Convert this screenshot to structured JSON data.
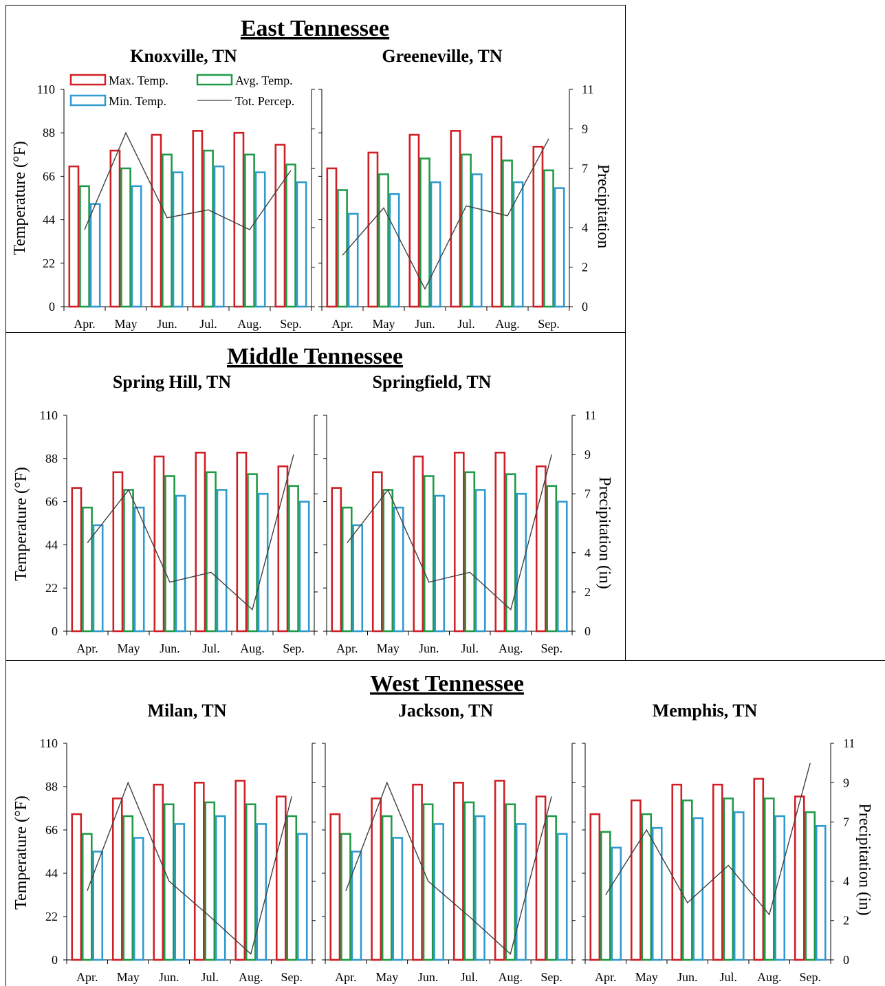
{
  "regions": [
    {
      "title": "East Tennessee"
    },
    {
      "title": "Middle Tennessee"
    },
    {
      "title": "West Tennessee"
    }
  ],
  "legend": {
    "max": "Max. Temp.",
    "avg": "Avg. Temp.",
    "min": "Min. Temp.",
    "precip": "Tot. Percep."
  },
  "axes": {
    "temp_label": "Temperature (°F)",
    "precip_label_short": "Precipitation",
    "precip_label": "Precipitation (in)",
    "temp_ticks": [
      0,
      22,
      44,
      66,
      88,
      110
    ],
    "precip_ticks": [
      0,
      2,
      4,
      7,
      9,
      11
    ]
  },
  "colors": {
    "max": "#d11f26",
    "avg": "#1f9b47",
    "min": "#2f9ad0",
    "precip": "#404040"
  },
  "chart_data": [
    {
      "type": "bar",
      "region": 0,
      "title": "Knoxville, TN",
      "categories": [
        "Apr.",
        "May",
        "Jun.",
        "Jul.",
        "Aug.",
        "Sep."
      ],
      "series": [
        {
          "name": "Max. Temp.",
          "values": [
            71,
            79,
            87,
            89,
            88,
            82
          ]
        },
        {
          "name": "Avg. Temp.",
          "values": [
            61,
            70,
            77,
            79,
            77,
            72
          ]
        },
        {
          "name": "Min. Temp.",
          "values": [
            52,
            61,
            68,
            71,
            68,
            63
          ]
        },
        {
          "name": "Tot. Percep.",
          "axis": "right",
          "values": [
            3.9,
            8.8,
            4.5,
            4.9,
            3.9,
            6.9
          ]
        }
      ],
      "ylim": [
        0,
        110
      ],
      "y2lim": [
        0,
        11
      ]
    },
    {
      "type": "bar",
      "region": 0,
      "title": "Greeneville, TN",
      "categories": [
        "Apr.",
        "May",
        "Jun.",
        "Jul.",
        "Aug.",
        "Sep."
      ],
      "series": [
        {
          "name": "Max. Temp.",
          "values": [
            70,
            78,
            87,
            89,
            86,
            81
          ]
        },
        {
          "name": "Avg. Temp.",
          "values": [
            59,
            67,
            75,
            77,
            74,
            69
          ]
        },
        {
          "name": "Min. Temp.",
          "values": [
            47,
            57,
            63,
            67,
            63,
            60
          ]
        },
        {
          "name": "Tot. Percep.",
          "axis": "right",
          "values": [
            2.6,
            5.0,
            0.9,
            5.1,
            4.6,
            8.5
          ]
        }
      ],
      "ylim": [
        0,
        110
      ],
      "y2lim": [
        0,
        11
      ]
    },
    {
      "type": "bar",
      "region": 1,
      "title": "Spring Hill, TN",
      "categories": [
        "Apr.",
        "May",
        "Jun.",
        "Jul.",
        "Aug.",
        "Sep."
      ],
      "series": [
        {
          "name": "Max. Temp.",
          "values": [
            73,
            81,
            89,
            91,
            91,
            84
          ]
        },
        {
          "name": "Avg. Temp.",
          "values": [
            63,
            72,
            79,
            81,
            80,
            74
          ]
        },
        {
          "name": "Min. Temp.",
          "values": [
            54,
            63,
            69,
            72,
            70,
            66
          ]
        },
        {
          "name": "Tot. Percep.",
          "axis": "right",
          "values": [
            4.5,
            7.2,
            2.5,
            3.0,
            1.1,
            9.0
          ]
        }
      ],
      "ylim": [
        0,
        110
      ],
      "y2lim": [
        0,
        11
      ]
    },
    {
      "type": "bar",
      "region": 1,
      "title": "Springfield, TN",
      "categories": [
        "Apr.",
        "May",
        "Jun.",
        "Jul.",
        "Aug.",
        "Sep."
      ],
      "series": [
        {
          "name": "Max. Temp.",
          "values": [
            73,
            81,
            89,
            91,
            91,
            84
          ]
        },
        {
          "name": "Avg. Temp.",
          "values": [
            63,
            72,
            79,
            81,
            80,
            74
          ]
        },
        {
          "name": "Min. Temp.",
          "values": [
            54,
            63,
            69,
            72,
            70,
            66
          ]
        },
        {
          "name": "Tot. Percep.",
          "axis": "right",
          "values": [
            4.5,
            7.2,
            2.5,
            3.0,
            1.1,
            9.0
          ]
        }
      ],
      "ylim": [
        0,
        110
      ],
      "y2lim": [
        0,
        11
      ]
    },
    {
      "type": "bar",
      "region": 2,
      "title": "Milan, TN",
      "categories": [
        "Apr.",
        "May",
        "Jun.",
        "Jul.",
        "Aug.",
        "Sep."
      ],
      "series": [
        {
          "name": "Max. Temp.",
          "values": [
            74,
            82,
            89,
            90,
            91,
            83
          ]
        },
        {
          "name": "Avg. Temp.",
          "values": [
            64,
            73,
            79,
            80,
            79,
            73
          ]
        },
        {
          "name": "Min. Temp.",
          "values": [
            55,
            62,
            69,
            73,
            69,
            64
          ]
        },
        {
          "name": "Tot. Percep.",
          "axis": "right",
          "values": [
            3.5,
            9.0,
            4.0,
            2.2,
            0.3,
            8.3
          ]
        }
      ],
      "ylim": [
        0,
        110
      ],
      "y2lim": [
        0,
        11
      ]
    },
    {
      "type": "bar",
      "region": 2,
      "title": "Jackson, TN",
      "categories": [
        "Apr.",
        "May",
        "Jun.",
        "Jul.",
        "Aug.",
        "Sep."
      ],
      "series": [
        {
          "name": "Max. Temp.",
          "values": [
            74,
            82,
            89,
            90,
            91,
            83
          ]
        },
        {
          "name": "Avg. Temp.",
          "values": [
            64,
            73,
            79,
            80,
            79,
            73
          ]
        },
        {
          "name": "Min. Temp.",
          "values": [
            55,
            62,
            69,
            73,
            69,
            64
          ]
        },
        {
          "name": "Tot. Percep.",
          "axis": "right",
          "values": [
            3.5,
            9.0,
            4.0,
            2.2,
            0.3,
            8.3
          ]
        }
      ],
      "ylim": [
        0,
        110
      ],
      "y2lim": [
        0,
        11
      ]
    },
    {
      "type": "bar",
      "region": 2,
      "title": "Memphis, TN",
      "categories": [
        "Apr.",
        "May",
        "Jun.",
        "Jul.",
        "Aug.",
        "Sep."
      ],
      "series": [
        {
          "name": "Max. Temp.",
          "values": [
            74,
            81,
            89,
            89,
            92,
            83
          ]
        },
        {
          "name": "Avg. Temp.",
          "values": [
            65,
            74,
            81,
            82,
            82,
            75
          ]
        },
        {
          "name": "Min. Temp.",
          "values": [
            57,
            67,
            72,
            75,
            73,
            68
          ]
        },
        {
          "name": "Tot. Percep.",
          "axis": "right",
          "values": [
            3.3,
            6.6,
            2.9,
            4.8,
            2.3,
            10.0
          ]
        }
      ],
      "ylim": [
        0,
        110
      ],
      "y2lim": [
        0,
        11
      ]
    }
  ]
}
